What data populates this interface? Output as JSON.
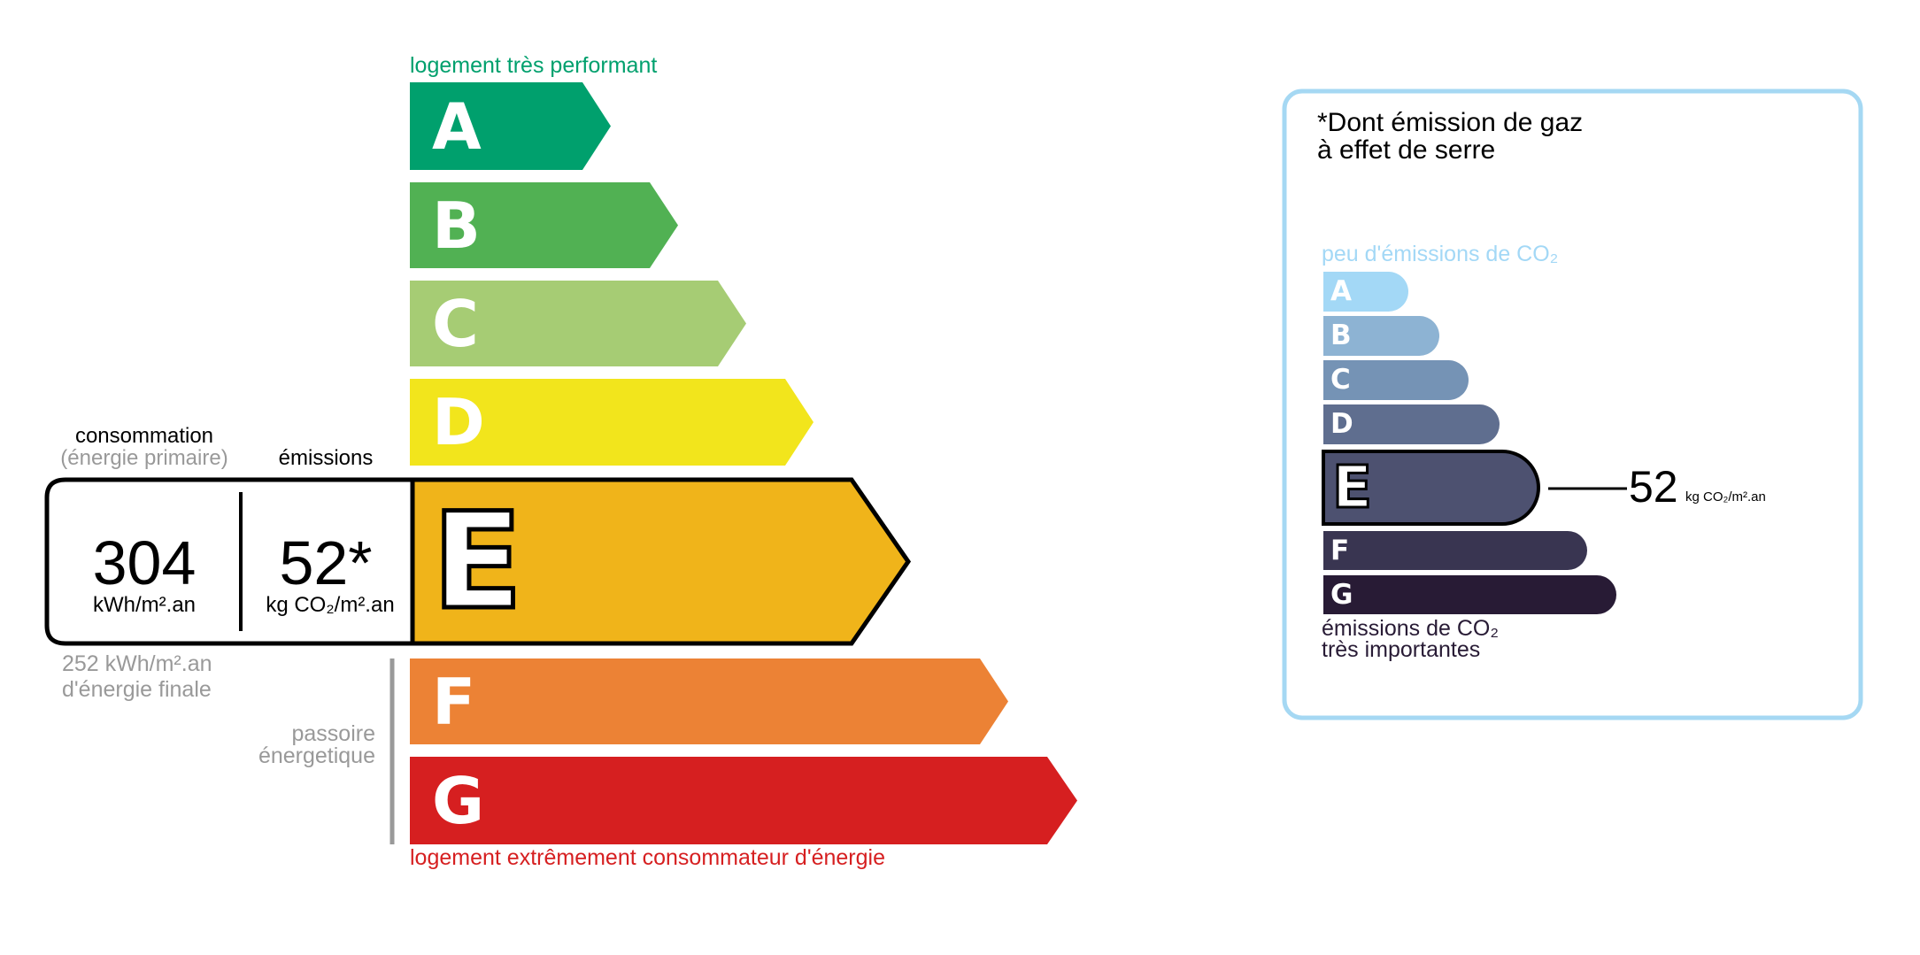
{
  "energy": {
    "top_label": "logement très performant",
    "bottom_label": "logement extrêmement consommateur d'énergie",
    "classes": [
      {
        "letter": "A",
        "color": "#00a06d"
      },
      {
        "letter": "B",
        "color": "#51b153"
      },
      {
        "letter": "C",
        "color": "#a6cc74"
      },
      {
        "letter": "D",
        "color": "#f2e51c"
      },
      {
        "letter": "E",
        "color": "#f0b41a"
      },
      {
        "letter": "F",
        "color": "#ec8235"
      },
      {
        "letter": "G",
        "color": "#d61f20"
      }
    ],
    "current_class": "E",
    "consumption_label": "consommation",
    "consumption_sub": "(énergie primaire)",
    "emissions_label": "émissions",
    "consumption_value": "304",
    "consumption_unit": "kWh/m².an",
    "emissions_value": "52*",
    "emissions_unit": "kg CO₂/m².an",
    "final_energy_line1": "252 kWh/m².an",
    "final_energy_line2": "d'énergie finale",
    "passoire_line1": "passoire",
    "passoire_line2": "énergetique"
  },
  "ges": {
    "title_line1": "*Dont émission de gaz",
    "title_line2": "à effet de serre",
    "top_label": "peu d'émissions de CO₂",
    "bottom_line1": "émissions de CO₂",
    "bottom_line2": "très importantes",
    "classes": [
      {
        "letter": "A",
        "color": "#a3d8f6"
      },
      {
        "letter": "B",
        "color": "#8db3d3"
      },
      {
        "letter": "C",
        "color": "#7593b5"
      },
      {
        "letter": "D",
        "color": "#5f6e8f"
      },
      {
        "letter": "E",
        "color": "#4d5170"
      },
      {
        "letter": "F",
        "color": "#393551"
      },
      {
        "letter": "G",
        "color": "#281b35"
      }
    ],
    "current_class": "E",
    "value": "52",
    "unit": "kg CO₂/m².an",
    "border_color": "#a5d8f3"
  }
}
